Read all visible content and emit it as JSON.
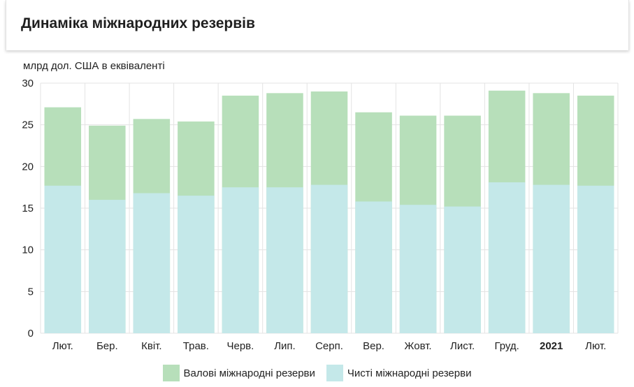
{
  "header": {
    "title": "Динаміка міжнародних резервів"
  },
  "chart_data": {
    "type": "bar",
    "stacked": false,
    "overlap": true,
    "ylabel": "млрд дол. США в еквіваленті",
    "ylim": [
      0,
      30
    ],
    "yticks": [
      0,
      5,
      10,
      15,
      20,
      25,
      30
    ],
    "grid": true,
    "categories": [
      "Лют.",
      "Бер.",
      "Квіт.",
      "Трав.",
      "Черв.",
      "Лип.",
      "Серп.",
      "Вер.",
      "Жовт.",
      "Лист.",
      "Груд.",
      "2021",
      "Лют."
    ],
    "bold_categories": [
      "2021"
    ],
    "series": [
      {
        "name": "Валові міжнародні резерви",
        "color": "#b7dfba",
        "values": [
          27.1,
          24.9,
          25.7,
          25.4,
          28.5,
          28.8,
          29.0,
          26.5,
          26.1,
          26.1,
          29.1,
          28.8,
          28.5
        ]
      },
      {
        "name": "Чисті міжнародні резерви",
        "color": "#c4e8e9",
        "values": [
          17.7,
          16.0,
          16.8,
          16.5,
          17.5,
          17.5,
          17.8,
          15.8,
          15.4,
          15.2,
          18.1,
          17.8,
          17.7
        ]
      }
    ],
    "legend_position": "bottom"
  }
}
